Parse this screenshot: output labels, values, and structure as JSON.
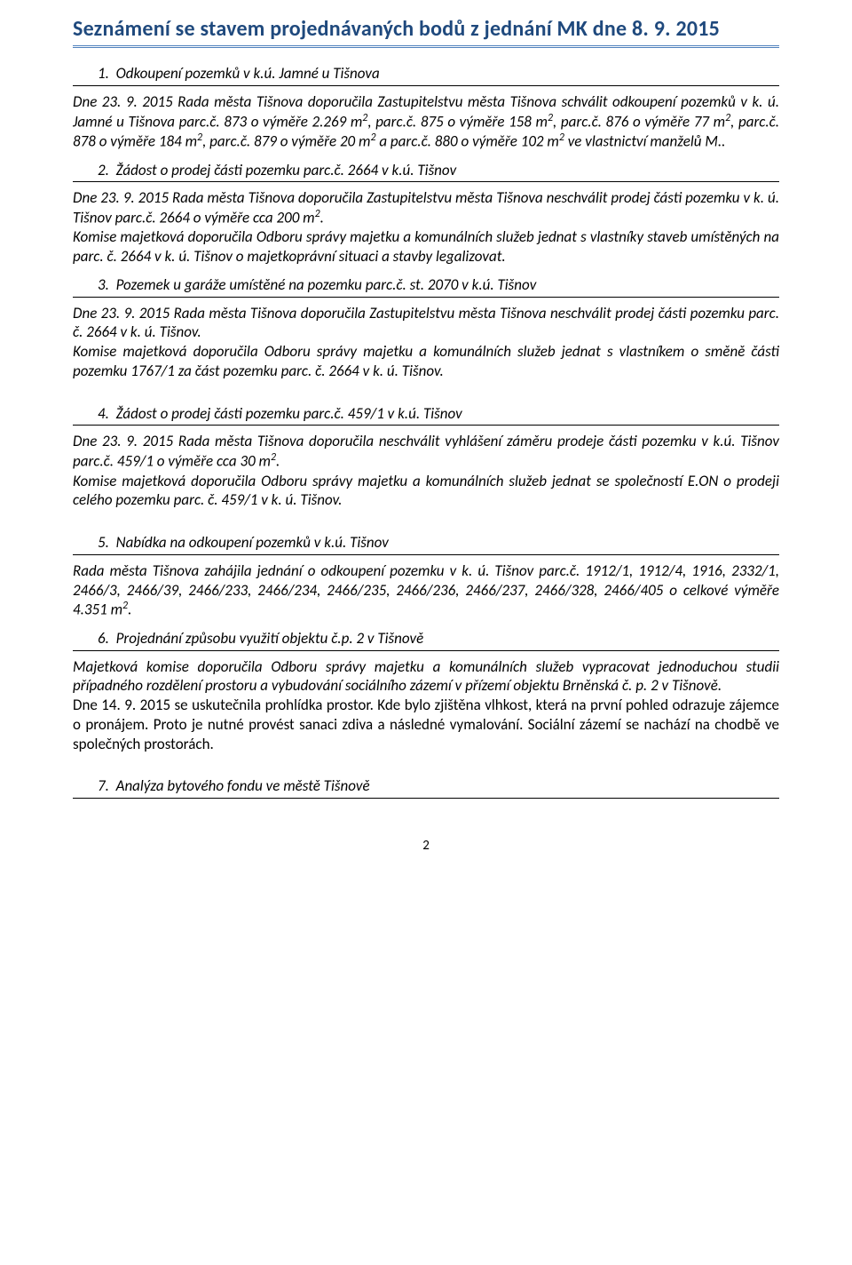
{
  "colors": {
    "heading": "#1F497D",
    "rule": "#4F81BD",
    "text": "#000000",
    "background": "#ffffff"
  },
  "main_title": "Seznámení se stavem projednávaných bodů z jednání MK dne 8. 9. 2015",
  "items": [
    {
      "num": "1.",
      "title": "Odkoupení pozemků v k.ú. Jamné u Tišnova",
      "body_html": "Dne 23. 9. 2015 Rada města Tišnova doporučila Zastupitelstvu města Tišnova schválit odkoupení pozemků v k. ú. Jamné u Tišnova parc.č. 873 o výměře 2.269 m<sup>2</sup>, parc.č. 875 o výměře 158 m<sup>2</sup>, parc.č. 876 o výměře 77 m<sup>2</sup>, parc.č. 878 o výměře 184 m<sup>2</sup>, parc.č. 879 o výměře 20 m<sup>2</sup> a parc.č. 880 o výměře 102 m<sup>2</sup> ve vlastnictví manželů M.."
    },
    {
      "num": "2.",
      "title": "Žádost o prodej části pozemku parc.č. 2664 v k.ú. Tišnov",
      "body_html": "Dne 23. 9. 2015 Rada města Tišnova doporučila Zastupitelstvu města Tišnova neschválit prodej části pozemku v k. ú. Tišnov parc.č. 2664 o výměře cca 200 m<sup>2</sup>.<br>Komise majetková doporučila Odboru správy majetku a komunálních služeb jednat s vlastníky staveb umístěných na parc. č. 2664 v k. ú. Tišnov o majetkoprávní situaci a stavby legalizovat."
    },
    {
      "num": "3.",
      "title": "Pozemek u garáže umístěné na pozemku parc.č. st. 2070 v k.ú. Tišnov",
      "body_html": "Dne 23. 9. 2015 Rada města Tišnova doporučila Zastupitelstvu města Tišnova neschválit prodej části pozemku parc. č. 2664 v k. ú.  Tišnov.<br>Komise majetková doporučila Odboru správy majetku a komunálních služeb jednat s vlastníkem o směně části pozemku  1767/1 za část pozemku parc. č. 2664 v k. ú. Tišnov."
    },
    {
      "num": "4.",
      "title": "Žádost o prodej části pozemku parc.č. 459/1 v k.ú. Tišnov",
      "body_html": "Dne 23. 9. 2015 Rada města Tišnova doporučila neschválit vyhlášení záměru prodeje části pozemku v k.ú. Tišnov parc.č. 459/1 o výměře cca 30 m<sup>2</sup>.<br>Komise majetková doporučila Odboru správy majetku a komunálních služeb jednat se společností E.ON o prodeji celého pozemku parc. č. 459/1 v k. ú. Tišnov."
    },
    {
      "num": "5.",
      "title": "Nabídka na odkoupení pozemků v k.ú. Tišnov",
      "body_html": " Rada města Tišnova zahájila jednání o odkoupení pozemku v k. ú. Tišnov parc.č. 1912/1, 1912/4, 1916, 2332/1, 2466/3, 2466/39, 2466/233, 2466/234, 2466/235, 2466/236, 2466/237, 2466/328, 2466/405 o celkové výměře 4.351 m<sup>2</sup>."
    },
    {
      "num": "6.",
      "title": "Projednání způsobu využití objektu č.p. 2 v Tišnově",
      "body_html": "<span style=\"text-align:justify;display:block;\">Majetková komise doporučila Odboru správy majetku a komunálních služeb vypracovat jednoduchou studii případného rozdělení prostoru a vybudování sociálního zázemí v přízemí objektu Brněnská č. p. 2 v Tišnově.</span><span style=\"font-style:normal;display:block;text-align:justify;\">Dne 14. 9. 2015 se uskutečnila prohlídka prostor. Kde bylo zjištěna vlhkost, která na první pohled odrazuje zájemce o pronájem. Proto je nutné provést sanaci zdiva a následné vymalování. Sociální zázemí se nachází na chodbě ve společných prostorách.</span>"
    },
    {
      "num": "7.",
      "title": "Analýza bytového fondu ve městě Tišnově",
      "body_html": ""
    }
  ],
  "page_number": "2"
}
